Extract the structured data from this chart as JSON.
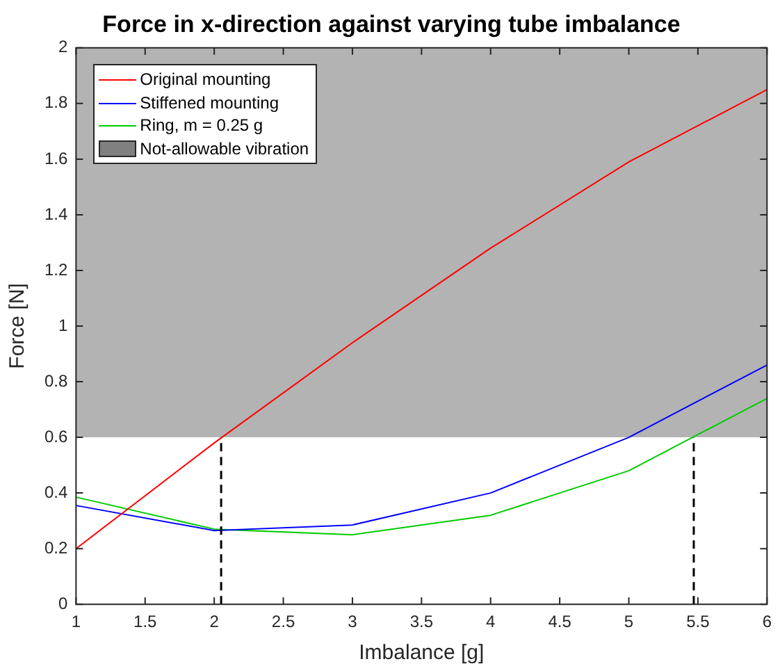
{
  "chart_data": {
    "type": "line",
    "title": "Force in x-direction against varying tube imbalance",
    "xlabel": "Imbalance [g]",
    "ylabel": "Force [N]",
    "x": [
      1,
      2,
      3,
      4,
      5,
      6
    ],
    "series": [
      {
        "name": "Original mounting",
        "color": "#ff0000",
        "values": [
          0.2,
          0.58,
          0.94,
          1.28,
          1.59,
          1.85
        ]
      },
      {
        "name": "Stiffened mounting",
        "color": "#0000ff",
        "values": [
          0.355,
          0.265,
          0.285,
          0.4,
          0.6,
          0.86
        ]
      },
      {
        "name": "Ring, m = 0.25 g",
        "color": "#00cc00",
        "values": [
          0.385,
          0.27,
          0.25,
          0.32,
          0.48,
          0.74
        ]
      }
    ],
    "bands": [
      {
        "axis": "y",
        "from": 0.6,
        "to": 2,
        "label": "Not-allowable vibration",
        "color": "#808080"
      }
    ],
    "ref_lines": [
      {
        "axis": "x",
        "value": 2.05,
        "color": "#000000",
        "line_style": "dashed"
      },
      {
        "axis": "x",
        "value": 5.47,
        "color": "#000000",
        "line_style": "dashed"
      }
    ],
    "xlim": [
      1,
      6
    ],
    "xticks": [
      1,
      1.5,
      2,
      2.5,
      3,
      3.5,
      4,
      4.5,
      5,
      5.5,
      6
    ],
    "ylim": [
      0,
      2
    ],
    "yticks": [
      0,
      0.2,
      0.4,
      0.6,
      0.8,
      1,
      1.2,
      1.4,
      1.6,
      1.8,
      2
    ],
    "grid": false,
    "legend": "top left",
    "marker": "none",
    "line_style": "solid"
  }
}
